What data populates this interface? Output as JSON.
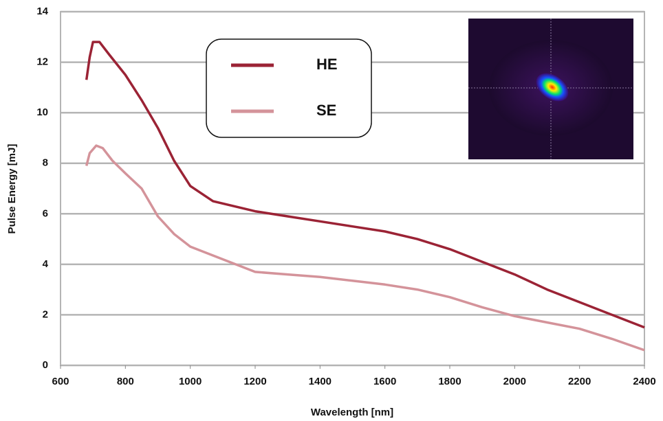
{
  "chart_data": {
    "type": "line",
    "x_label": "Wavelength [nm]",
    "y_label": "Pulse Energy [mJ]",
    "xlim": [
      600,
      2400
    ],
    "xticks": [
      600,
      800,
      1000,
      1200,
      1400,
      1600,
      1800,
      2000,
      2200,
      2400
    ],
    "ylim": [
      0,
      14
    ],
    "yticks": [
      0,
      2,
      4,
      6,
      8,
      10,
      12,
      14
    ],
    "grid": true,
    "series": [
      {
        "name": "HE",
        "color": "#9b2335",
        "x": [
          680,
          690,
          700,
          720,
          750,
          800,
          850,
          900,
          950,
          1000,
          1070,
          1200,
          1300,
          1400,
          1500,
          1600,
          1700,
          1800,
          1900,
          2000,
          2100,
          2200,
          2300,
          2400
        ],
        "values": [
          11.3,
          12.2,
          12.8,
          12.8,
          12.3,
          11.5,
          10.5,
          9.4,
          8.1,
          7.1,
          6.5,
          6.1,
          5.9,
          5.7,
          5.5,
          5.3,
          5.0,
          4.6,
          4.1,
          3.6,
          3.0,
          2.5,
          2.0,
          1.5
        ]
      },
      {
        "name": "SE",
        "color": "#d4939a",
        "x": [
          680,
          690,
          710,
          730,
          760,
          800,
          850,
          900,
          950,
          1000,
          1100,
          1200,
          1300,
          1400,
          1500,
          1600,
          1700,
          1800,
          1900,
          2000,
          2100,
          2200,
          2300,
          2400
        ],
        "values": [
          7.9,
          8.4,
          8.7,
          8.6,
          8.1,
          7.6,
          7.0,
          5.9,
          5.2,
          4.7,
          4.2,
          3.7,
          3.6,
          3.5,
          3.35,
          3.2,
          3.0,
          2.7,
          2.3,
          1.95,
          1.7,
          1.45,
          1.05,
          0.6
        ]
      }
    ]
  }
}
